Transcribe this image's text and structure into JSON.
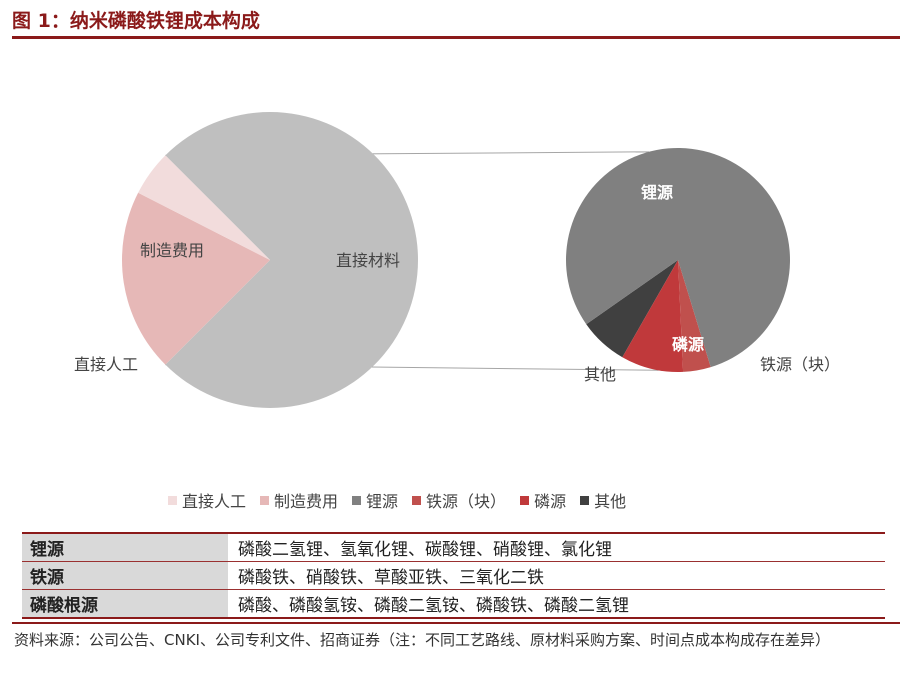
{
  "figure_title": "图 1：纳米磷酸铁锂成本构成",
  "colors": {
    "title_red": "#8b1a1a",
    "direct_labor": "#f2dcdc",
    "manufacturing": "#e6b8b7",
    "lithium_source": "#808080",
    "iron_source": "#c0504d",
    "phosphorus_source": "#c0393b",
    "other": "#404040",
    "direct_material": "#bfbfbf"
  },
  "chart_data": [
    {
      "type": "pie",
      "slices": [
        {
          "label": "直接材料",
          "value": 75
        },
        {
          "label": "制造费用",
          "value": 20
        },
        {
          "label": "直接人工",
          "value": 5
        }
      ]
    },
    {
      "type": "pie",
      "slices": [
        {
          "label": "锂源",
          "value": 80
        },
        {
          "label": "铁源（块）",
          "value": 4
        },
        {
          "label": "磷源",
          "value": 9
        },
        {
          "label": "其他",
          "value": 7
        }
      ]
    }
  ],
  "legend": [
    {
      "label": "直接人工",
      "color": "#f2dcdc"
    },
    {
      "label": "制造费用",
      "color": "#e6b8b7"
    },
    {
      "label": "锂源",
      "color": "#808080"
    },
    {
      "label": "铁源（块）",
      "color": "#c0504d"
    },
    {
      "label": "磷源",
      "color": "#c0393b"
    },
    {
      "label": "其他",
      "color": "#404040"
    }
  ],
  "table": [
    {
      "category": "锂源",
      "items": "磷酸二氢锂、氢氧化锂、碳酸锂、硝酸锂、氯化锂"
    },
    {
      "category": "铁源",
      "items": "磷酸铁、硝酸铁、草酸亚铁、三氧化二铁"
    },
    {
      "category": "磷酸根源",
      "items": "磷酸、磷酸氢铵、磷酸二氢铵、磷酸铁、磷酸二氢锂"
    }
  ],
  "source_note": "资料来源：公司公告、CNKI、公司专利文件、招商证券（注：不同工艺路线、原材料采购方案、时间点成本构成存在差异）"
}
